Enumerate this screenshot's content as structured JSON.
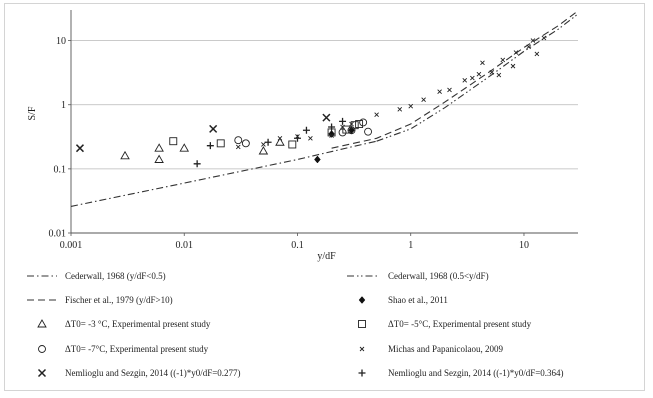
{
  "chart_data": {
    "type": "scatter",
    "xlabel": "y/dF",
    "ylabel": "S/F",
    "xscale": "log",
    "yscale": "log",
    "xlim": [
      0.001,
      30
    ],
    "ylim": [
      0.01,
      30
    ],
    "x_ticks": [
      {
        "value": 0.001,
        "label": "0.001"
      },
      {
        "value": 0.01,
        "label": "0.01"
      },
      {
        "value": 0.1,
        "label": "0.1"
      },
      {
        "value": 1,
        "label": "1"
      },
      {
        "value": 10,
        "label": "10"
      }
    ],
    "y_ticks": [
      {
        "value": 0.01,
        "label": "0.01"
      },
      {
        "value": 0.1,
        "label": "0.1"
      },
      {
        "value": 1,
        "label": "1"
      },
      {
        "value": 10,
        "label": "10"
      }
    ],
    "grid": "horizontal",
    "legend_position": "bottom",
    "lines": [
      {
        "name": "Cederwall, 1968 (y/dF<0.5)",
        "dash": "dash-dot",
        "points": [
          [
            0.001,
            0.026
          ],
          [
            0.01,
            0.06
          ],
          [
            0.1,
            0.14
          ],
          [
            0.3,
            0.22
          ],
          [
            0.5,
            0.27
          ]
        ]
      },
      {
        "name": "Cederwall, 1968 (0.5<y/dF)",
        "dash": "dash-dot-dot",
        "points": [
          [
            0.5,
            0.27
          ],
          [
            1,
            0.42
          ],
          [
            2,
            0.9
          ],
          [
            5,
            2.8
          ],
          [
            10,
            6.8
          ],
          [
            20,
            15
          ],
          [
            30,
            26
          ]
        ]
      },
      {
        "name": "Fischer et al., 1979 (y/dF>10)",
        "dash": "dash",
        "points": [
          [
            0.2,
            0.21
          ],
          [
            0.5,
            0.3
          ],
          [
            1,
            0.5
          ],
          [
            2,
            1.1
          ],
          [
            5,
            3.3
          ],
          [
            10,
            7.8
          ],
          [
            20,
            17
          ],
          [
            30,
            29
          ]
        ]
      }
    ],
    "series": [
      {
        "name": "Shao et al., 2011",
        "marker": "diamond-filled",
        "points": [
          [
            0.15,
            0.14
          ],
          [
            0.2,
            0.35
          ],
          [
            0.3,
            0.4
          ]
        ]
      },
      {
        "name": "ΔT0= -3 °C, Experimental present study",
        "marker": "triangle",
        "points": [
          [
            0.003,
            0.16
          ],
          [
            0.006,
            0.21
          ],
          [
            0.006,
            0.14
          ],
          [
            0.01,
            0.21
          ],
          [
            0.05,
            0.19
          ],
          [
            0.07,
            0.26
          ]
        ]
      },
      {
        "name": "ΔT0= -5°C, Experimental present study",
        "marker": "square",
        "points": [
          [
            0.008,
            0.27
          ],
          [
            0.021,
            0.25
          ],
          [
            0.09,
            0.24
          ],
          [
            0.2,
            0.37
          ],
          [
            0.27,
            0.41
          ],
          [
            0.32,
            0.48
          ],
          [
            0.35,
            0.5
          ]
        ]
      },
      {
        "name": "ΔT0= -7°C, Experimental present study",
        "marker": "circle",
        "points": [
          [
            0.03,
            0.28
          ],
          [
            0.035,
            0.25
          ],
          [
            0.25,
            0.37
          ],
          [
            0.3,
            0.4
          ],
          [
            0.38,
            0.53
          ],
          [
            0.42,
            0.38
          ]
        ]
      },
      {
        "name": "Michas and Papanicolaou, 2009",
        "marker": "small-x",
        "points": [
          [
            0.03,
            0.22
          ],
          [
            0.05,
            0.24
          ],
          [
            0.07,
            0.3
          ],
          [
            0.1,
            0.32
          ],
          [
            0.13,
            0.3
          ],
          [
            0.2,
            0.33
          ],
          [
            0.25,
            0.45
          ],
          [
            0.3,
            0.5
          ],
          [
            0.5,
            0.7
          ],
          [
            0.8,
            0.85
          ],
          [
            1,
            0.95
          ],
          [
            1.3,
            1.2
          ],
          [
            1.8,
            1.6
          ],
          [
            2.2,
            1.7
          ],
          [
            3,
            2.4
          ],
          [
            3.5,
            2.6
          ],
          [
            4,
            3
          ],
          [
            4.3,
            4.5
          ],
          [
            5.2,
            3.2
          ],
          [
            6,
            2.9
          ],
          [
            6.5,
            5
          ],
          [
            8,
            4
          ],
          [
            8.5,
            6.5
          ],
          [
            11,
            8
          ],
          [
            12,
            10
          ],
          [
            13,
            6.2
          ],
          [
            15,
            11
          ]
        ]
      },
      {
        "name": "Nemlioglu and Sezgin, 2014 ((-1)*y0/dF=0.277)",
        "marker": "x",
        "points": [
          [
            0.0012,
            0.21
          ],
          [
            0.018,
            0.42
          ],
          [
            0.18,
            0.63
          ]
        ]
      },
      {
        "name": "Nemlioglu and Sezgin, 2014 ((-1)*y0/dF=0.364)",
        "marker": "plus",
        "points": [
          [
            0.013,
            0.12
          ],
          [
            0.017,
            0.23
          ],
          [
            0.055,
            0.26
          ],
          [
            0.1,
            0.3
          ],
          [
            0.12,
            0.4
          ],
          [
            0.2,
            0.45
          ],
          [
            0.25,
            0.55
          ]
        ]
      }
    ]
  },
  "legend": [
    {
      "key": "ced1",
      "label": "Cederwall, 1968 (y/dF<0.5)",
      "symbol": "line",
      "dash": "dash-dot"
    },
    {
      "key": "ced2",
      "label": "Cederwall, 1968 (0.5<y/dF)",
      "symbol": "line",
      "dash": "dash-dot-dot"
    },
    {
      "key": "fischer",
      "label": "Fischer et al., 1979 (y/dF>10)",
      "symbol": "line",
      "dash": "dash"
    },
    {
      "key": "shao",
      "label": "Shao et al., 2011",
      "symbol": "diamond-filled"
    },
    {
      "key": "t3",
      "label": "ΔT0= -3 °C, Experimental present study",
      "symbol": "triangle"
    },
    {
      "key": "t5",
      "label": "ΔT0= -5°C, Experimental present study",
      "symbol": "square"
    },
    {
      "key": "t7",
      "label": "ΔT0= -7°C, Experimental present study",
      "symbol": "circle"
    },
    {
      "key": "michas",
      "label": "Michas and Papanicolaou, 2009",
      "symbol": "small-x"
    },
    {
      "key": "nem277",
      "label": "Nemlioglu and Sezgin, 2014 ((-1)*y0/dF=0.277)",
      "symbol": "x"
    },
    {
      "key": "nem364",
      "label": "Nemlioglu and Sezgin, 2014 ((-1)*y0/dF=0.364)",
      "symbol": "plus"
    }
  ]
}
